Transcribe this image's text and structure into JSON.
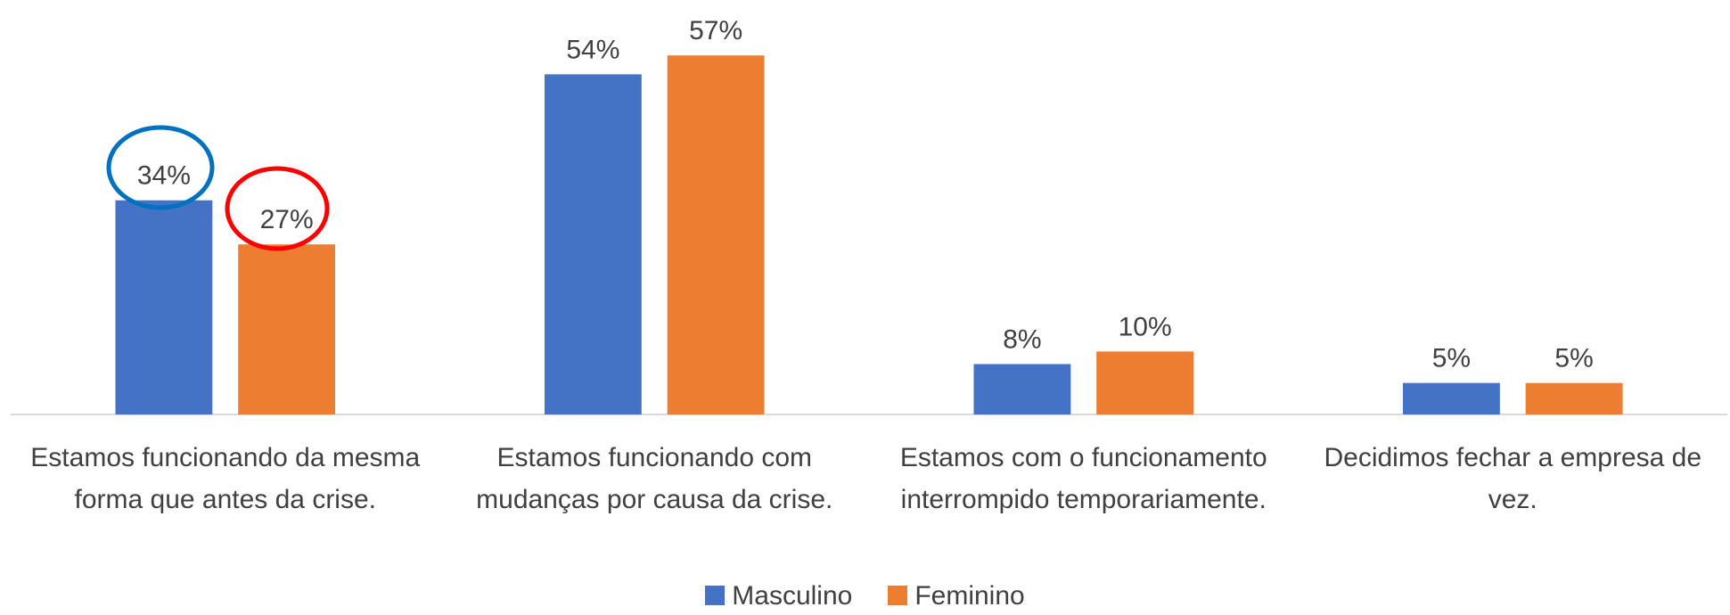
{
  "chart_data": {
    "type": "bar",
    "categories": [
      "Estamos funcionando da mesma forma que antes da crise.",
      "Estamos funcionando com mudanças por causa da crise.",
      "Estamos com o funcionamento interrompido temporariamente.",
      "Decidimos fechar a empresa de vez."
    ],
    "series": [
      {
        "name": "Masculino",
        "color": "#4472c4",
        "values": [
          34,
          54,
          8,
          5
        ],
        "value_labels": [
          "34%",
          "54%",
          "8%",
          "5%"
        ]
      },
      {
        "name": "Feminino",
        "color": "#ed7d31",
        "values": [
          27,
          57,
          10,
          5
        ],
        "value_labels": [
          "27%",
          "57%",
          "10%",
          "5%"
        ]
      }
    ],
    "ylim": [
      0,
      60
    ],
    "legend": "bottom"
  }
}
